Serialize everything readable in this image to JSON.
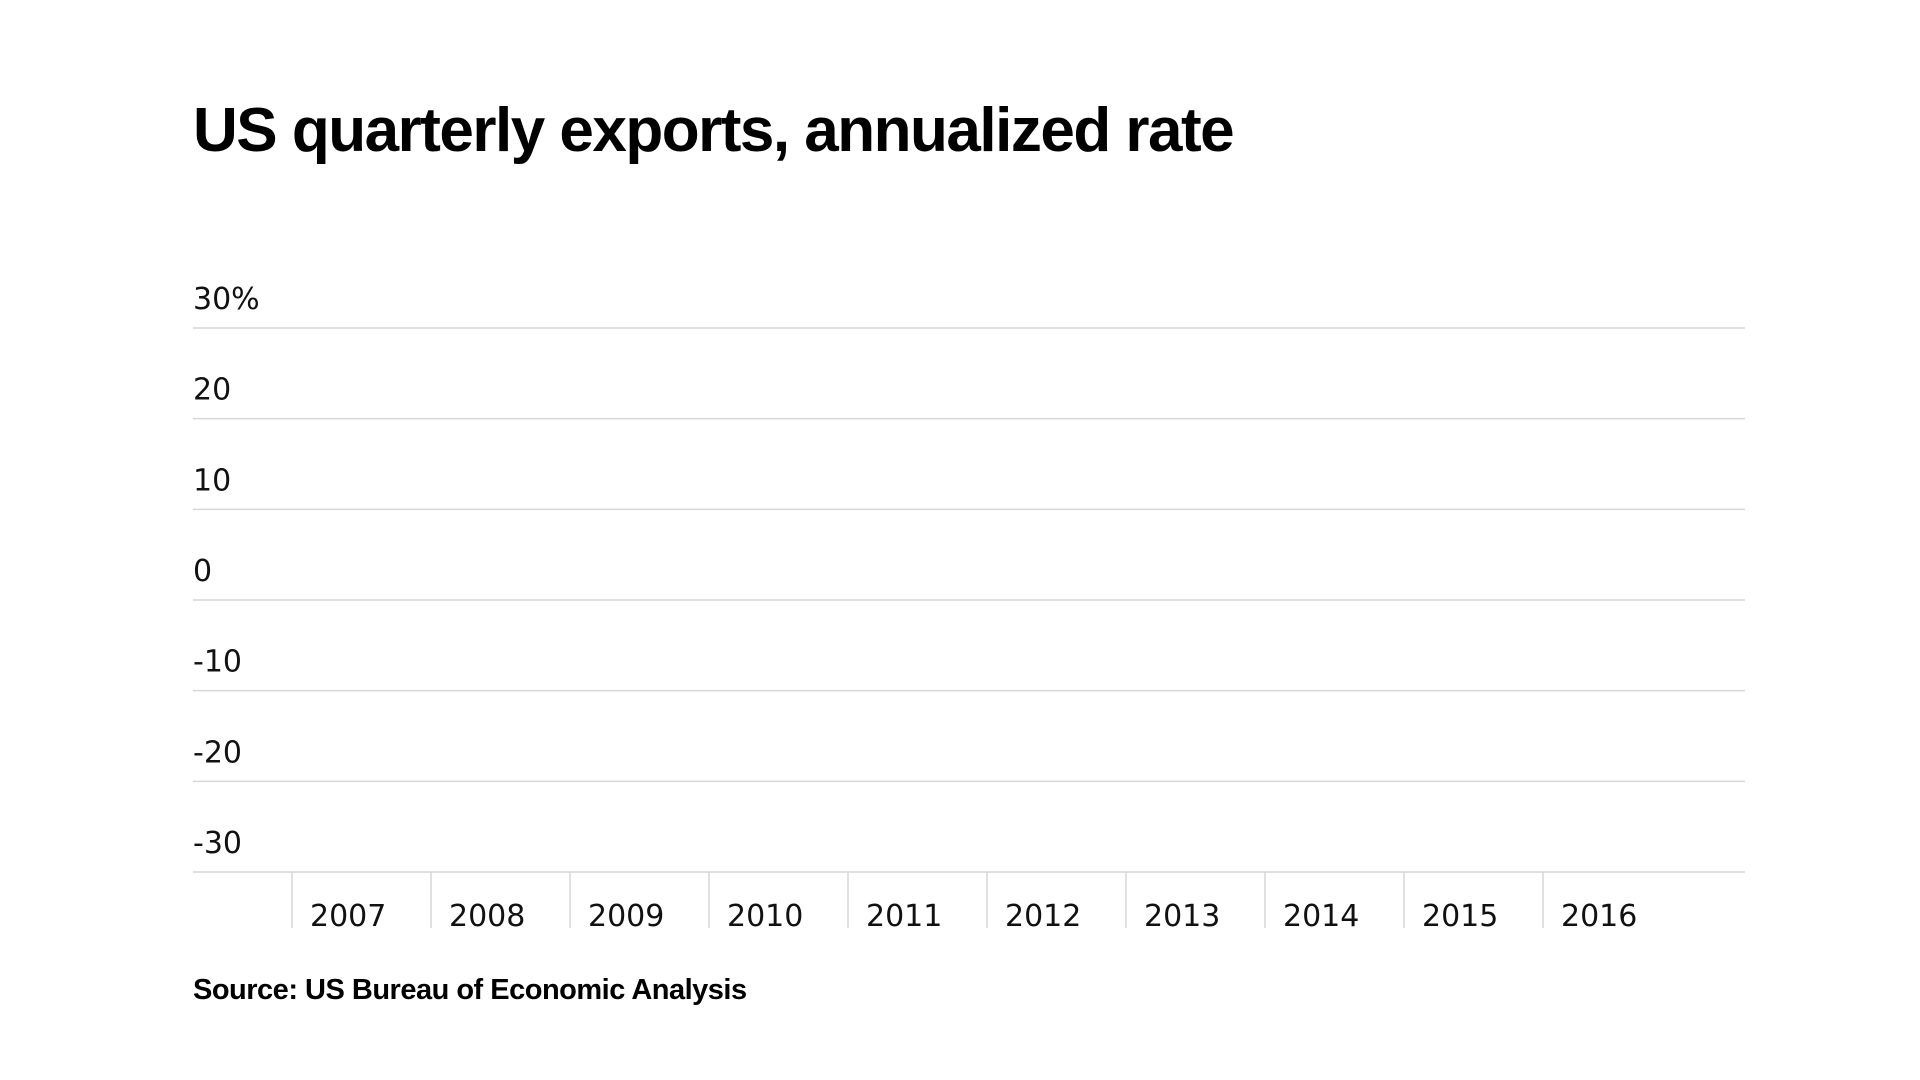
{
  "chart_data": {
    "type": "line",
    "title": "US quarterly exports, annualized rate",
    "source": "Source: US Bureau of Economic Analysis",
    "y_ticks": [
      {
        "value": 30,
        "label": "30%"
      },
      {
        "value": 20,
        "label": "20"
      },
      {
        "value": 10,
        "label": "10"
      },
      {
        "value": 0,
        "label": "0"
      },
      {
        "value": -10,
        "label": "-10"
      },
      {
        "value": -20,
        "label": "-20"
      },
      {
        "value": -30,
        "label": "-30"
      }
    ],
    "ylim": [
      -30,
      30
    ],
    "x_labels": [
      "2007",
      "2008",
      "2009",
      "2010",
      "2011",
      "2012",
      "2013",
      "2014",
      "2015",
      "2016"
    ],
    "series": [],
    "grid": true,
    "colors": {
      "gridline": "#d6d6d6",
      "text": "#111111"
    }
  }
}
